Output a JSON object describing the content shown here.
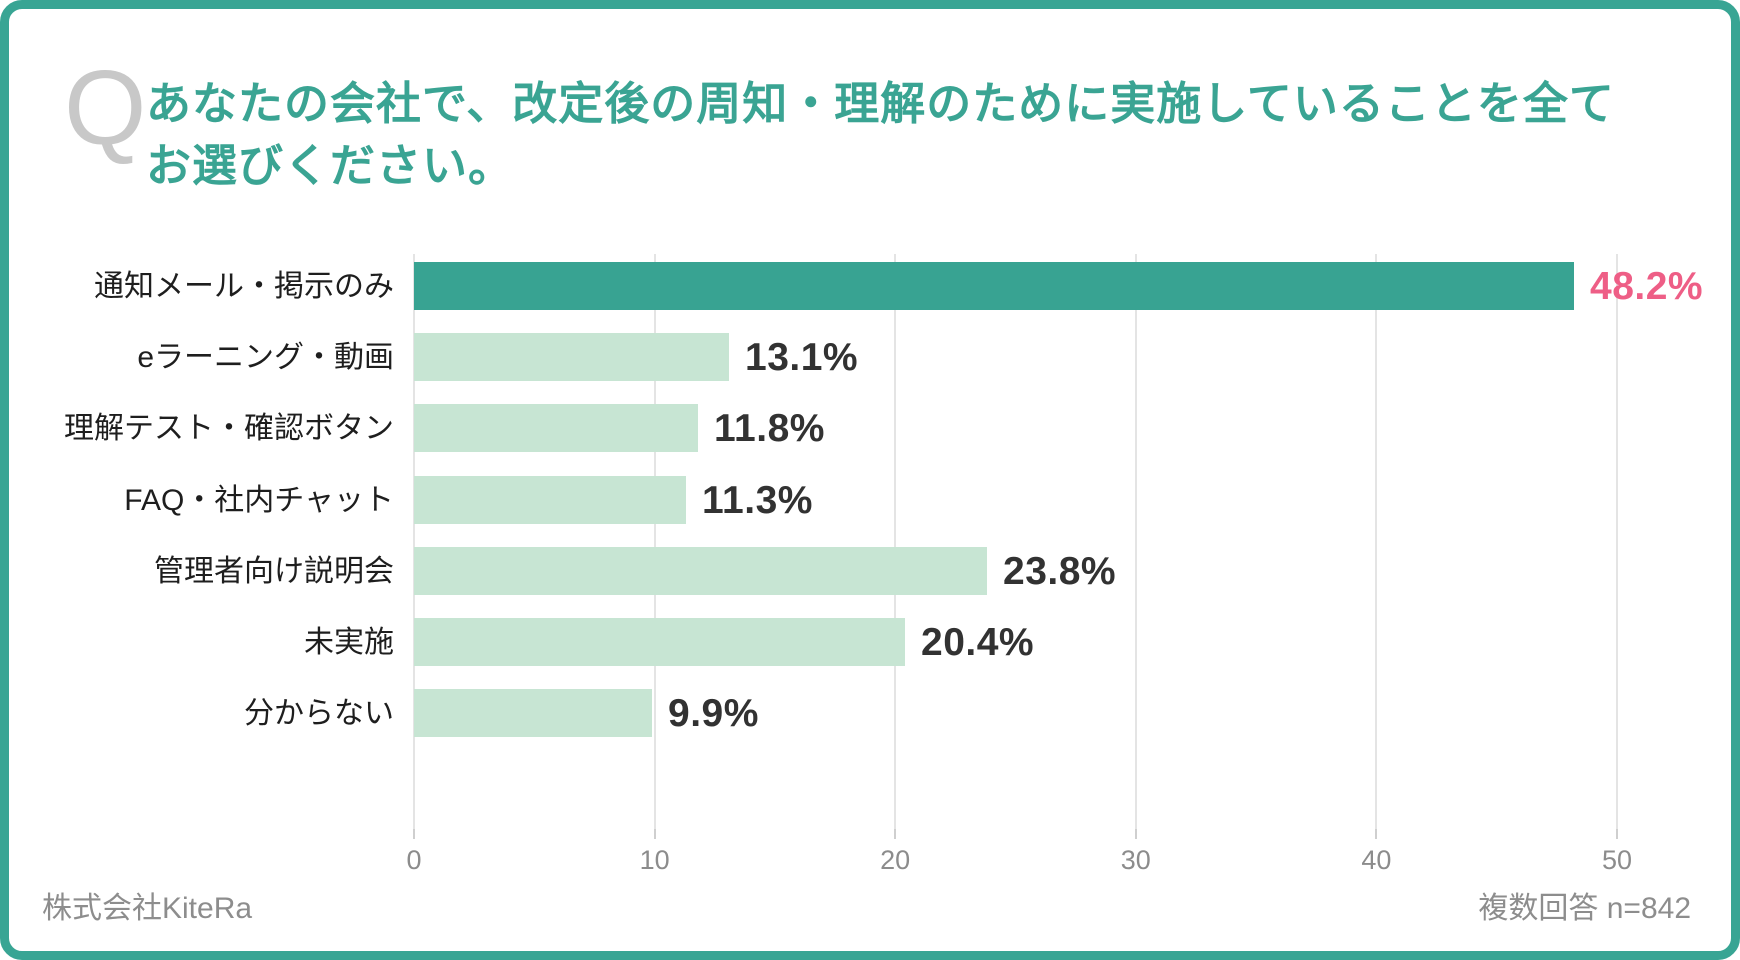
{
  "header": {
    "q_mark": "Q",
    "title_line1": "あなたの会社で、改定後の周知・理解のために実施していることを全て",
    "title_line2": "お選びください。"
  },
  "chart_data": {
    "type": "bar",
    "orientation": "horizontal",
    "categories": [
      "通知メール・掲示のみ",
      "eラーニング・動画",
      "理解テスト・確認ボタン",
      "FAQ・社内チャット",
      "管理者向け説明会",
      "未実施",
      "分からない"
    ],
    "values": [
      48.2,
      13.1,
      11.8,
      11.3,
      23.8,
      20.4,
      9.9
    ],
    "value_labels": [
      "48.2%",
      "13.1%",
      "11.8%",
      "11.3%",
      "23.8%",
      "20.4%",
      "9.9%"
    ],
    "xlim": [
      0,
      50
    ],
    "xticks": [
      "0",
      "10",
      "20",
      "30",
      "40",
      "50"
    ],
    "grid": true,
    "legend": false,
    "highlight_index": 0,
    "colors": {
      "highlight_bar": "#38a392",
      "bar": "#c7e5d3",
      "highlight_value": "#ee5e86",
      "value": "#323232",
      "title": "#3aa493",
      "border": "#38a594",
      "gridline": "#e4e4e4"
    }
  },
  "footer": {
    "source": "株式会社KiteRa",
    "note": "複数回答 n=842"
  }
}
